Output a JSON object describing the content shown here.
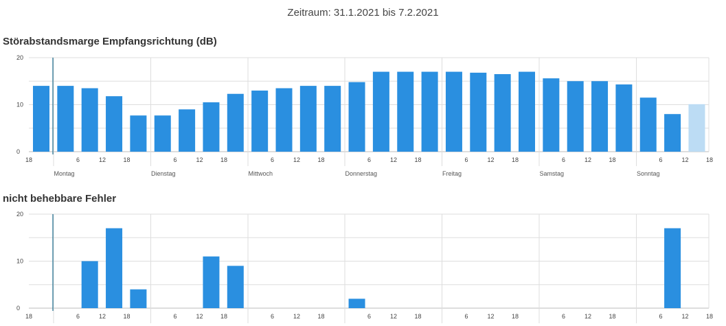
{
  "header": {
    "period": "Zeitraum: 31.1.2021 bis 7.2.2021"
  },
  "colors": {
    "bar": "#2a8fe0",
    "bar_current": "#bcdcf4",
    "grid": "#dddddd",
    "marker": "#1f6f8f"
  },
  "hour_ticks": [
    "18",
    "6",
    "12",
    "18",
    "6",
    "12",
    "18",
    "6",
    "12",
    "18",
    "6",
    "12",
    "18",
    "6",
    "12",
    "18",
    "6",
    "12",
    "18",
    "6",
    "12",
    "18",
    "6",
    "12"
  ],
  "day_labels": [
    "Montag",
    "Dienstag",
    "Mittwoch",
    "Donnerstag",
    "Freitag",
    "Samstag",
    "Sonntag"
  ],
  "chart_data": [
    {
      "type": "bar",
      "title": "Störabstandsmarge Empfangsrichtung (dB)",
      "ylim": [
        0,
        20
      ],
      "yticks": [
        "0",
        "10",
        "20"
      ],
      "values": [
        14,
        14,
        13.5,
        11.8,
        7.7,
        7.7,
        9,
        10.5,
        12.3,
        13,
        13.5,
        14,
        14,
        14.8,
        17,
        17,
        17,
        17,
        16.8,
        16.5,
        17,
        15.6,
        15,
        15,
        14.3,
        11.5,
        8,
        10.1
      ],
      "current_index": 27
    },
    {
      "type": "bar",
      "title": "nicht behebbare Fehler",
      "ylim": [
        0,
        20
      ],
      "yticks": [
        "0",
        "10",
        "20"
      ],
      "values": [
        0,
        0,
        10,
        17,
        4,
        0,
        0,
        11,
        9,
        0,
        0,
        0,
        0,
        2,
        0,
        0,
        0,
        0,
        0,
        0,
        0,
        0,
        0,
        0,
        0,
        0,
        17,
        0
      ],
      "current_index": -1
    }
  ]
}
